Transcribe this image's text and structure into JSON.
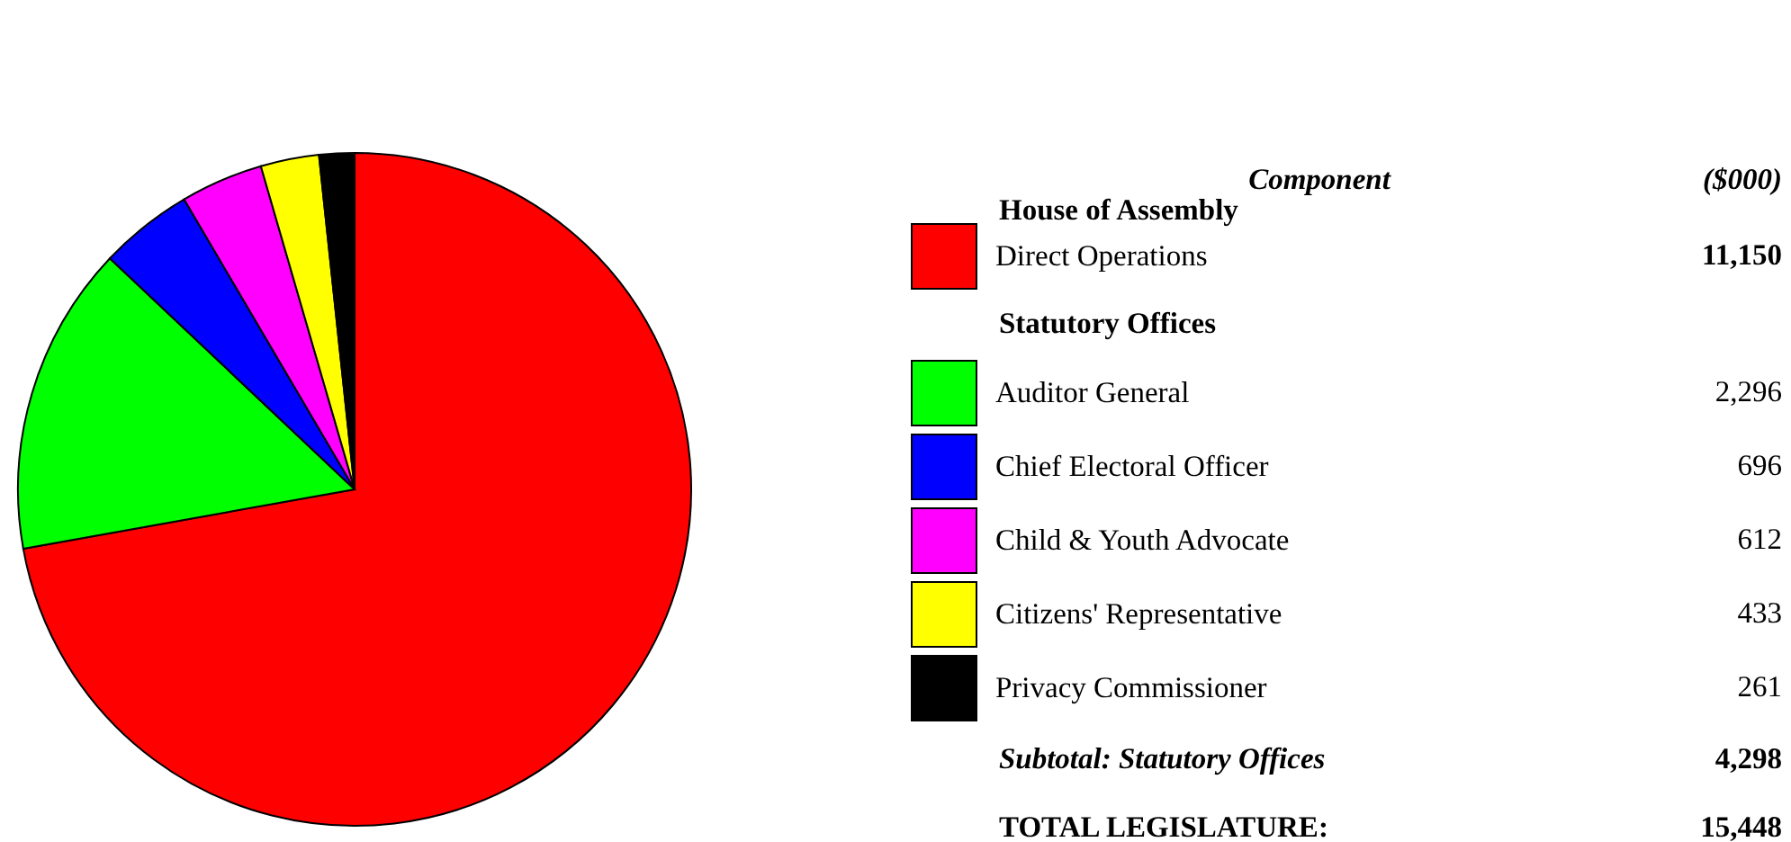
{
  "chart_data": {
    "type": "pie",
    "categories": [
      "Direct Operations",
      "Auditor General",
      "Chief Electoral Officer",
      "Child & Youth Advocate",
      "Citizens' Representative",
      "Privacy Commissioner"
    ],
    "values": [
      11150,
      2296,
      696,
      612,
      433,
      261
    ],
    "value_labels": [
      "11,150",
      "2,296",
      "696",
      "612",
      "433",
      "261"
    ],
    "colors": [
      "#ff0000",
      "#00ff00",
      "#0000ff",
      "#ff00ff",
      "#ffff00",
      "#000000"
    ],
    "legend": "right",
    "legend_title": "Component",
    "annotations": [
      "($000)",
      "House of Assembly",
      "Statutory Offices",
      "Subtotal: Statutory Offices",
      "4,298",
      "TOTAL LEGISLATURE:",
      "15,448"
    ]
  }
}
